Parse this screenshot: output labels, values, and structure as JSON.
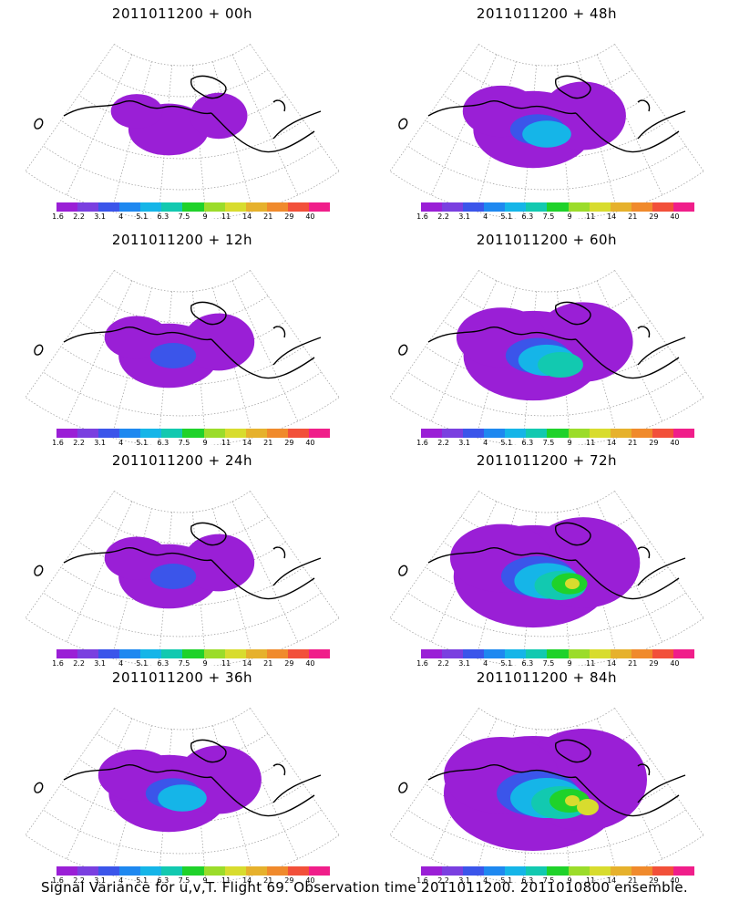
{
  "panels": [
    {
      "title": "2011011200 + 00h",
      "field_level": 0
    },
    {
      "title": "2011011200 + 48h",
      "field_level": 2
    },
    {
      "title": "2011011200 + 12h",
      "field_level": 1
    },
    {
      "title": "2011011200 + 60h",
      "field_level": 3
    },
    {
      "title": "2011011200 + 24h",
      "field_level": 1
    },
    {
      "title": "2011011200 + 72h",
      "field_level": 4
    },
    {
      "title": "2011011200 + 36h",
      "field_level": 2
    },
    {
      "title": "2011011200 + 84h",
      "field_level": 5
    }
  ],
  "colorbar": {
    "labels": [
      "1.6",
      "2.2",
      "3.1",
      "4",
      "5.1",
      "6.3",
      "7.5",
      "9",
      "11",
      "14",
      "21",
      "29",
      "40"
    ],
    "colors": [
      "#9a1fd6",
      "#7a3fe0",
      "#3b55ea",
      "#1e88f0",
      "#15b5e8",
      "#12c9b0",
      "#1fd22a",
      "#9bdc2a",
      "#d8dc2e",
      "#e6b12c",
      "#f08a2c",
      "#f2503a",
      "#f01e8a"
    ]
  },
  "footer": "Signal Variance for u,v,T. Flight 69. Observation time 2011011200. 2011010800 ensemble."
}
